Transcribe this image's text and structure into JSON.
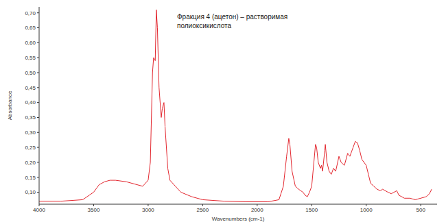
{
  "chart_data": {
    "type": "line",
    "title": "Фракция 4 (ацетон) – растворимая полиоксикислота",
    "x_label": "Wavenumbers (cm-1)",
    "y_label": "Absorbance",
    "x": [
      4000,
      3800,
      3600,
      3500,
      3450,
      3400,
      3350,
      3300,
      3200,
      3100,
      3050,
      3000,
      2980,
      2960,
      2950,
      2935,
      2925,
      2915,
      2900,
      2880,
      2870,
      2855,
      2845,
      2820,
      2800,
      2700,
      2600,
      2500,
      2300,
      2100,
      1900,
      1800,
      1760,
      1730,
      1710,
      1700,
      1680,
      1650,
      1620,
      1600,
      1580,
      1560,
      1540,
      1520,
      1500,
      1465,
      1455,
      1440,
      1420,
      1410,
      1400,
      1380,
      1375,
      1360,
      1340,
      1320,
      1300,
      1280,
      1250,
      1230,
      1200,
      1170,
      1150,
      1120,
      1100,
      1080,
      1060,
      1040,
      1020,
      1000,
      980,
      960,
      930,
      900,
      870,
      850,
      800,
      770,
      720,
      700,
      650,
      600,
      550,
      500,
      450,
      420,
      400
    ],
    "values": [
      0.07,
      0.07,
      0.075,
      0.1,
      0.125,
      0.135,
      0.14,
      0.14,
      0.135,
      0.125,
      0.12,
      0.14,
      0.2,
      0.5,
      0.55,
      0.54,
      0.71,
      0.65,
      0.45,
      0.35,
      0.38,
      0.4,
      0.32,
      0.18,
      0.14,
      0.1,
      0.085,
      0.075,
      0.07,
      0.068,
      0.068,
      0.075,
      0.12,
      0.22,
      0.28,
      0.26,
      0.17,
      0.12,
      0.11,
      0.105,
      0.1,
      0.09,
      0.085,
      0.1,
      0.12,
      0.26,
      0.25,
      0.2,
      0.18,
      0.19,
      0.17,
      0.24,
      0.26,
      0.2,
      0.17,
      0.16,
      0.18,
      0.17,
      0.22,
      0.2,
      0.19,
      0.23,
      0.22,
      0.25,
      0.27,
      0.265,
      0.24,
      0.21,
      0.2,
      0.19,
      0.16,
      0.13,
      0.12,
      0.11,
      0.105,
      0.11,
      0.1,
      0.095,
      0.105,
      0.09,
      0.08,
      0.08,
      0.075,
      0.08,
      0.085,
      0.095,
      0.11
    ],
    "color": "#e3262e",
    "xlim": [
      4000,
      350
    ],
    "xticks": [
      4000,
      3500,
      3000,
      2500,
      2000,
      1500,
      1000,
      500
    ],
    "ylim": [
      0.06,
      0.72
    ],
    "yticks": [
      {
        "value": 0.1,
        "label": "0,10"
      },
      {
        "value": 0.15,
        "label": "0,15"
      },
      {
        "value": 0.2,
        "label": "0,20"
      },
      {
        "value": 0.25,
        "label": "0,25"
      },
      {
        "value": 0.3,
        "label": "0,30"
      },
      {
        "value": 0.35,
        "label": "0,35"
      },
      {
        "value": 0.4,
        "label": "0,40"
      },
      {
        "value": 0.45,
        "label": "0,45"
      },
      {
        "value": 0.5,
        "label": "0,50"
      },
      {
        "value": 0.55,
        "label": "0,55"
      },
      {
        "value": 0.6,
        "label": "0,60"
      },
      {
        "value": 0.65,
        "label": "0,65"
      },
      {
        "value": 0.7,
        "label": "0,70"
      }
    ],
    "grid": false
  }
}
